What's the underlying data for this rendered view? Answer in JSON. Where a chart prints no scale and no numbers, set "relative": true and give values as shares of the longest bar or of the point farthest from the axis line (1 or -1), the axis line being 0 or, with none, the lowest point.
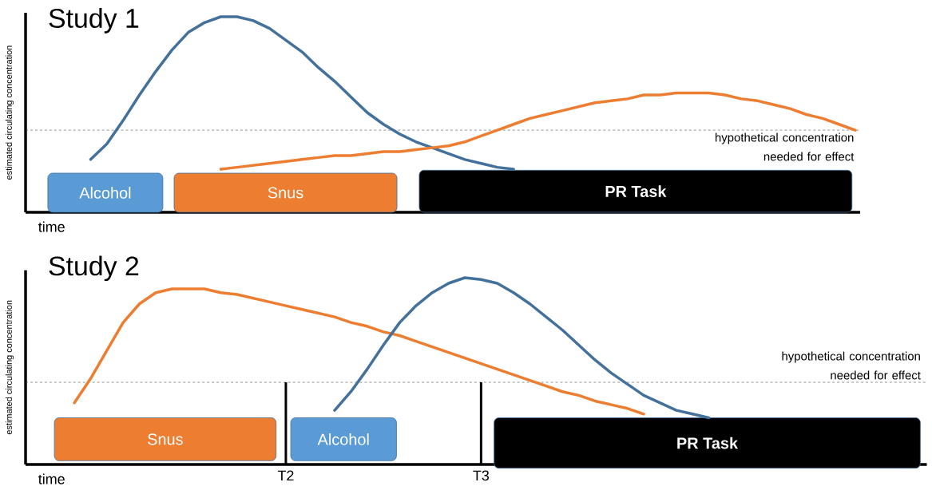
{
  "chart_data": [
    {
      "type": "line",
      "title": "Study 1",
      "xlabel": "time",
      "ylabel": "estimated circulating concentration",
      "relative": true,
      "tick_labels": "x",
      "grid": false,
      "categories": [
        null,
        null,
        null,
        null,
        null,
        null,
        null,
        null,
        null,
        null,
        null,
        null,
        null,
        null,
        null,
        null,
        null,
        null,
        null,
        null,
        null,
        null,
        null,
        null,
        null,
        null,
        null,
        null,
        null,
        null,
        null,
        null,
        null,
        null,
        null,
        null,
        null,
        null,
        null,
        null,
        null,
        null,
        null,
        null,
        null,
        null,
        null,
        null,
        null,
        null,
        null,
        null
      ],
      "series": [
        {
          "color": "#44719c",
          "values": [
            null,
            null,
            null,
            null,
            0.27,
            0.35,
            0.47,
            0.6,
            0.72,
            0.83,
            0.92,
            0.97,
            1.0,
            1.0,
            0.98,
            0.94,
            0.88,
            0.82,
            0.74,
            0.67,
            0.59,
            0.51,
            0.45,
            0.4,
            0.36,
            0.33,
            0.3,
            0.27,
            0.25,
            0.23,
            0.22,
            null,
            null,
            null,
            null,
            null,
            null,
            null,
            null,
            null,
            null,
            null,
            null,
            null,
            null,
            null,
            null,
            null,
            null,
            null,
            null,
            null
          ]
        },
        {
          "color": "#ed7d31",
          "values": [
            null,
            null,
            null,
            null,
            null,
            null,
            null,
            null,
            null,
            null,
            null,
            null,
            0.22,
            0.23,
            0.24,
            0.25,
            0.26,
            0.27,
            0.28,
            0.29,
            0.29,
            0.3,
            0.31,
            0.31,
            0.32,
            0.33,
            0.34,
            0.36,
            0.39,
            0.42,
            0.45,
            0.48,
            0.5,
            0.52,
            0.54,
            0.56,
            0.57,
            0.58,
            0.6,
            0.6,
            0.61,
            0.61,
            0.61,
            0.6,
            0.58,
            0.57,
            0.55,
            0.53,
            0.5,
            0.48,
            0.45,
            0.42
          ]
        }
      ],
      "ref_lines": [
        {
          "axis": "y",
          "value": 0.42,
          "label": "hypothetical concentration needed for effect",
          "line_style": "dashed"
        }
      ],
      "annotations": [
        "Alcohol",
        "Snus",
        "PR Task"
      ]
    },
    {
      "type": "line",
      "title": "Study 2",
      "xlabel": "time",
      "ylabel": "estimated circulating concentration",
      "relative": true,
      "tick_labels": "x",
      "grid": false,
      "categories": [
        null,
        null,
        null,
        null,
        null,
        null,
        null,
        null,
        null,
        null,
        null,
        null,
        null,
        null,
        null,
        null,
        "T2",
        null,
        null,
        null,
        null,
        null,
        null,
        null,
        null,
        null,
        null,
        null,
        "T3",
        null,
        null,
        null,
        null,
        null,
        null,
        null,
        null,
        null,
        null,
        null,
        null,
        null,
        null,
        null,
        null,
        null,
        null,
        null,
        null,
        null,
        null,
        null,
        null,
        null,
        null,
        null
      ],
      "series": [
        {
          "color": "#ed7d31",
          "values": [
            null,
            null,
            null,
            0.33,
            0.46,
            0.61,
            0.76,
            0.86,
            0.92,
            0.94,
            0.94,
            0.94,
            0.92,
            0.91,
            0.89,
            0.87,
            0.85,
            0.83,
            0.81,
            0.79,
            0.76,
            0.74,
            0.71,
            0.69,
            0.66,
            0.63,
            0.6,
            0.57,
            0.54,
            0.51,
            0.48,
            0.45,
            0.42,
            0.39,
            0.37,
            0.34,
            0.32,
            0.3,
            0.27,
            null,
            null,
            null,
            null,
            null,
            null,
            null,
            null,
            null,
            null,
            null,
            null,
            null,
            null,
            null,
            null,
            null
          ]
        },
        {
          "color": "#44719c",
          "values": [
            null,
            null,
            null,
            null,
            null,
            null,
            null,
            null,
            null,
            null,
            null,
            null,
            null,
            null,
            null,
            null,
            null,
            null,
            null,
            0.29,
            0.39,
            0.51,
            0.64,
            0.76,
            0.85,
            0.92,
            0.97,
            1.0,
            0.99,
            0.97,
            0.92,
            0.86,
            0.79,
            0.72,
            0.64,
            0.56,
            0.49,
            0.43,
            0.37,
            0.33,
            0.29,
            0.27,
            0.25,
            null,
            null,
            null,
            null,
            null,
            null,
            null,
            null,
            null,
            null,
            null,
            null,
            null
          ]
        }
      ],
      "ref_lines": [
        {
          "axis": "y",
          "value": 0.44,
          "label": "hypothetical concentration needed for effect",
          "line_style": "dashed"
        },
        {
          "axis": "x",
          "value": "T2"
        },
        {
          "axis": "x",
          "value": "T3"
        }
      ],
      "annotations": [
        "Snus",
        "Alcohol",
        "PR Task"
      ]
    }
  ]
}
